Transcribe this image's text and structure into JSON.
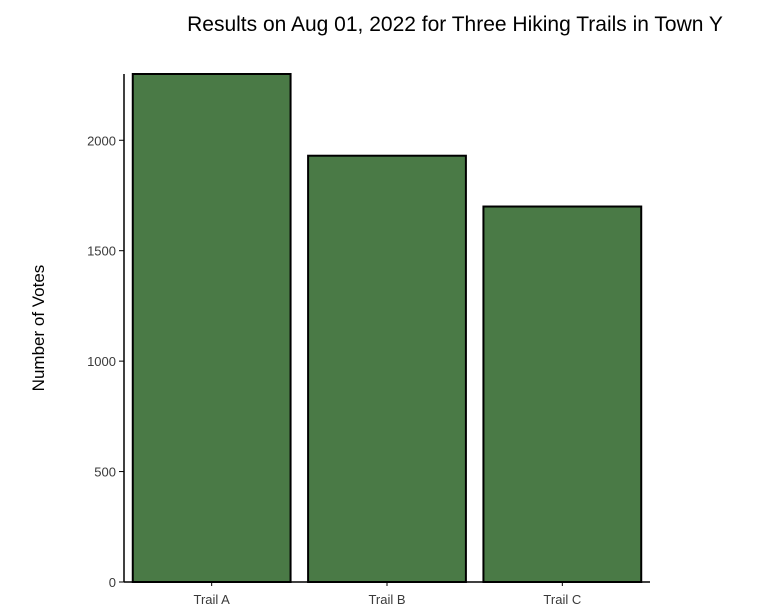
{
  "chart_data": {
    "type": "bar",
    "title": "Results on Aug 01, 2022 for Three Hiking Trails in Town Y",
    "xlabel": "",
    "ylabel": "Number of Votes",
    "categories": [
      "Trail A",
      "Trail B",
      "Trail C"
    ],
    "values": [
      2300,
      1930,
      1700
    ],
    "ylim": [
      0,
      2300
    ],
    "yticks": [
      0,
      500,
      1000,
      1500,
      2000
    ],
    "grid": false,
    "legend": "none",
    "colors": {
      "bar_fill": "#4a7a46",
      "bar_stroke": "#000000",
      "axis": "#000000",
      "tick_text": "#3a3a3a"
    }
  }
}
